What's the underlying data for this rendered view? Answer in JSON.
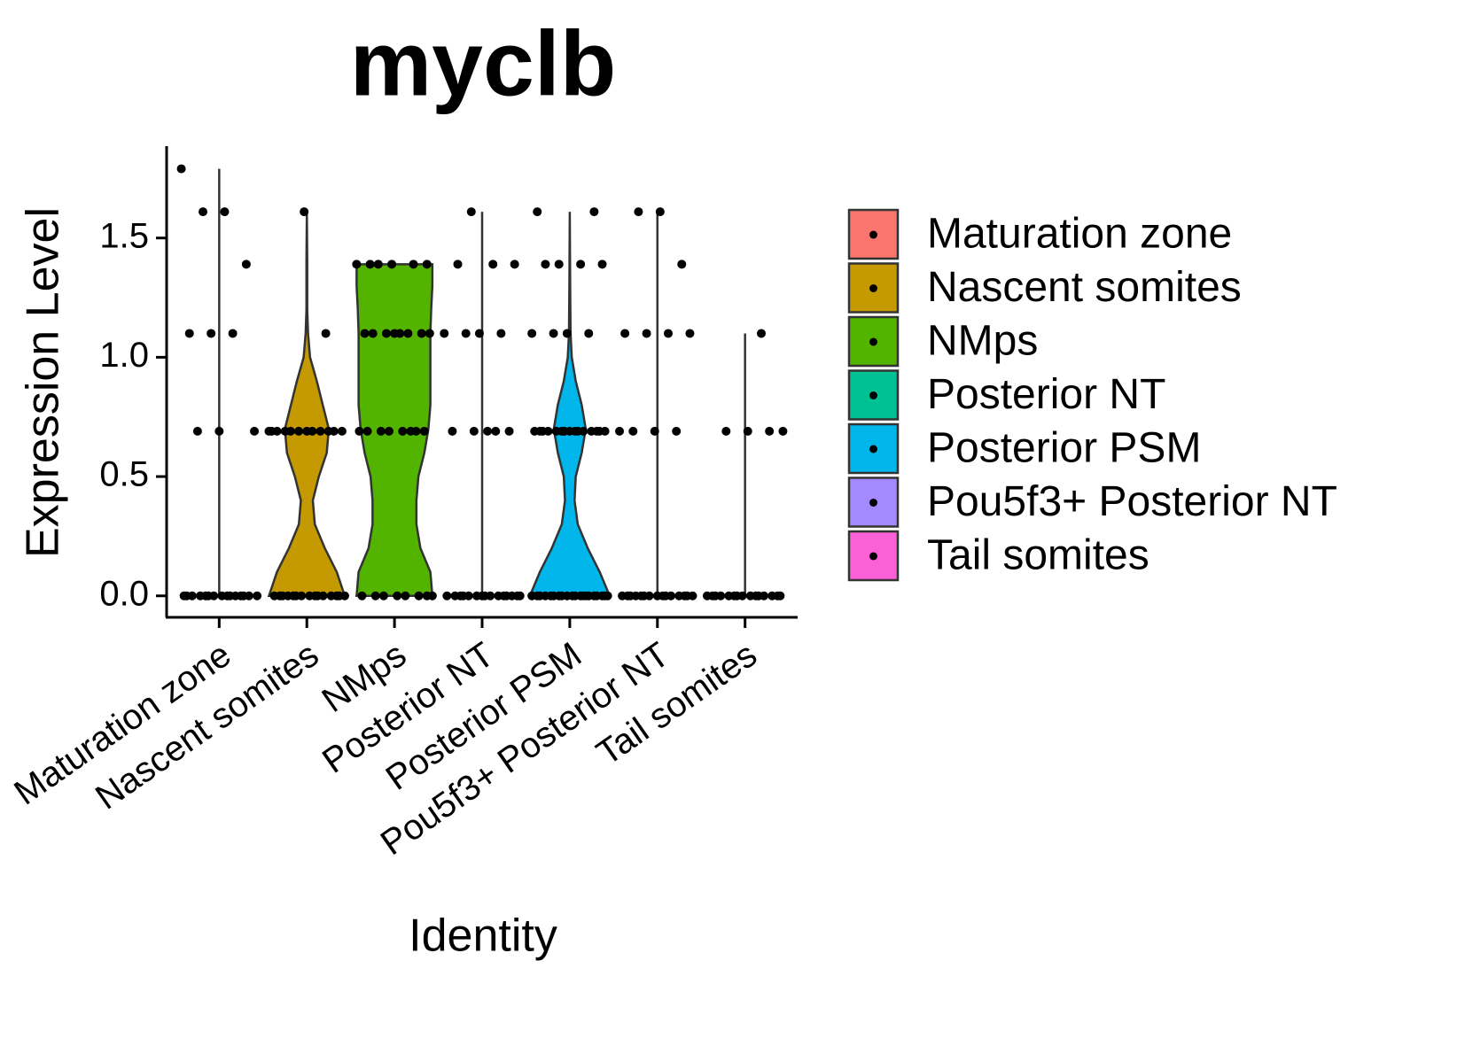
{
  "chart_data": {
    "type": "violin",
    "title": "myclb",
    "x_label": "Identity",
    "y_label": "Expression Level",
    "ylim": [
      -0.09,
      1.885
    ],
    "yticks": [
      {
        "value": 0,
        "label": "0.0"
      },
      0.5,
      {
        "value": 1,
        "label": "1.0"
      },
      1.5
    ],
    "series": [
      {
        "name": "Maturation zone",
        "color": "#f8766d",
        "density_y": [
          0,
          1.79
        ],
        "density": [
          0,
          0
        ],
        "points": [
          1.79,
          1.61,
          1.61,
          1.39,
          1.1,
          1.1,
          1.1,
          0.69,
          0.69,
          0.69,
          0,
          0,
          0,
          0,
          0,
          0,
          0,
          0,
          0,
          0,
          0,
          0,
          0,
          0,
          0
        ]
      },
      {
        "name": "Nascent somites",
        "color": "#c49a00",
        "density_y": [
          0,
          0.1,
          0.2,
          0.3,
          0.4,
          0.5,
          0.6,
          0.7,
          0.8,
          0.9,
          1.0,
          1.1,
          1.2,
          1.4,
          1.61
        ],
        "density": [
          0.95,
          0.75,
          0.45,
          0.2,
          0.15,
          0.3,
          0.5,
          0.55,
          0.4,
          0.25,
          0.08,
          0.03,
          0.01,
          0.01,
          0
        ],
        "points": [
          1.61,
          1.1,
          0.69,
          0.69,
          0.69,
          0.69,
          0.69,
          0.69,
          0.69,
          0.69,
          0.69,
          0.69,
          0.69,
          0.69,
          0,
          0,
          0,
          0,
          0,
          0,
          0,
          0,
          0,
          0,
          0,
          0,
          0,
          0,
          0
        ]
      },
      {
        "name": "NMps",
        "color": "#53b400",
        "density_y": [
          0,
          0.1,
          0.2,
          0.3,
          0.4,
          0.5,
          0.6,
          0.7,
          0.8,
          0.9,
          1.0,
          1.1,
          1.2,
          1.3,
          1.39
        ],
        "density": [
          0.95,
          0.9,
          0.65,
          0.55,
          0.55,
          0.6,
          0.75,
          0.85,
          0.9,
          0.9,
          0.9,
          0.9,
          0.92,
          0.95,
          0.95
        ],
        "points": [
          1.39,
          1.39,
          1.39,
          1.39,
          1.39,
          1.39,
          1.1,
          1.1,
          1.1,
          1.1,
          1.1,
          1.1,
          1.1,
          1.1,
          0.69,
          0.69,
          0.69,
          0.69,
          0.69,
          0.69,
          0.69,
          0.69,
          0,
          0,
          0,
          0,
          0,
          0,
          0,
          0
        ]
      },
      {
        "name": "Posterior NT",
        "color": "#00c094",
        "density_y": [
          0,
          1.61
        ],
        "density": [
          0,
          0
        ],
        "points": [
          1.61,
          1.39,
          1.39,
          1.39,
          1.1,
          1.1,
          1.1,
          1.1,
          0.69,
          0.69,
          0.69,
          0.69,
          0.69,
          0,
          0,
          0,
          0,
          0,
          0,
          0,
          0,
          0,
          0,
          0,
          0,
          0,
          0,
          0
        ]
      },
      {
        "name": "Posterior PSM",
        "color": "#00b6eb",
        "density_y": [
          0,
          0.1,
          0.2,
          0.3,
          0.4,
          0.5,
          0.6,
          0.7,
          0.8,
          0.9,
          1.0,
          1.1,
          1.3,
          1.61
        ],
        "density": [
          1.0,
          0.75,
          0.45,
          0.2,
          0.12,
          0.15,
          0.3,
          0.4,
          0.3,
          0.15,
          0.05,
          0.02,
          0.01,
          0
        ],
        "points": [
          1.61,
          1.61,
          1.39,
          1.39,
          1.39,
          1.39,
          1.1,
          1.1,
          1.1,
          1.1,
          0.69,
          0.69,
          0.69,
          0.69,
          0.69,
          0.69,
          0.69,
          0.69,
          0.69,
          0.69,
          0.69,
          0.69,
          0.69,
          0.69,
          0.69,
          0,
          0,
          0,
          0,
          0,
          0,
          0,
          0,
          0,
          0,
          0,
          0,
          0,
          0,
          0,
          0,
          0,
          0,
          0,
          0
        ]
      },
      {
        "name": "Pou5f3+ Posterior NT",
        "color": "#a58aff",
        "density_y": [
          0,
          1.61
        ],
        "density": [
          0,
          0
        ],
        "points": [
          1.61,
          1.61,
          1.39,
          1.1,
          1.1,
          1.1,
          1.1,
          0.69,
          0.69,
          0.69,
          0.69,
          0,
          0,
          0,
          0,
          0,
          0,
          0,
          0,
          0,
          0,
          0,
          0,
          0,
          0,
          0
        ]
      },
      {
        "name": "Tail somites",
        "color": "#fb61d7",
        "density_y": [
          0,
          1.1
        ],
        "density": [
          0,
          0
        ],
        "points": [
          1.1,
          0.69,
          0.69,
          0.69,
          0.69,
          0,
          0,
          0,
          0,
          0,
          0,
          0,
          0,
          0,
          0,
          0,
          0,
          0,
          0,
          0
        ]
      }
    ]
  }
}
